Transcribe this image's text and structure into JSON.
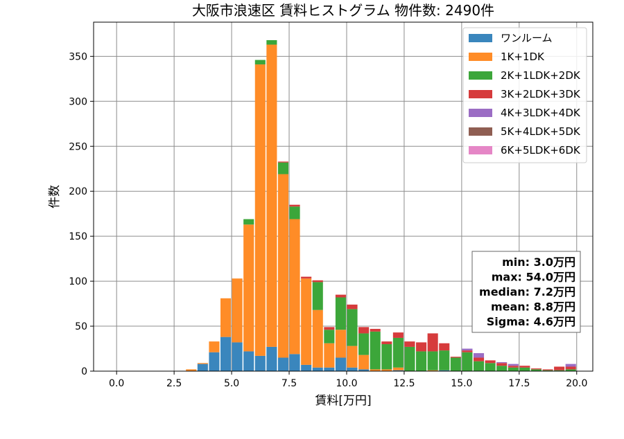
{
  "chart_data": {
    "type": "bar",
    "stacked": true,
    "title": "大阪市浪速区 賃料ヒストグラム  物件数: 2490件",
    "xlabel": "賃料[万円]",
    "ylabel": "件数",
    "xlim": [
      -1.0,
      20.7
    ],
    "ylim": [
      0,
      388
    ],
    "xticks": [
      0.0,
      2.5,
      5.0,
      7.5,
      10.0,
      12.5,
      15.0,
      17.5,
      20.0
    ],
    "xtick_labels": [
      "0.0",
      "2.5",
      "5.0",
      "7.5",
      "10.0",
      "12.5",
      "15.0",
      "17.5",
      "20.0"
    ],
    "yticks": [
      0,
      50,
      100,
      150,
      200,
      250,
      300,
      350
    ],
    "ytick_labels": [
      "0",
      "50",
      "100",
      "150",
      "200",
      "250",
      "300",
      "350"
    ],
    "grid": true,
    "legend_position": "top-right",
    "bin_width": 0.5,
    "bin_starts": [
      2.5,
      3.0,
      3.5,
      4.0,
      4.5,
      5.0,
      5.5,
      6.0,
      6.5,
      7.0,
      7.5,
      8.0,
      8.5,
      9.0,
      9.5,
      10.0,
      10.5,
      11.0,
      11.5,
      12.0,
      12.5,
      13.0,
      13.5,
      14.0,
      14.5,
      15.0,
      15.5,
      16.0,
      16.5,
      17.0,
      17.5,
      18.0,
      18.5,
      19.0,
      19.5
    ],
    "series": [
      {
        "name": "ワンルーム",
        "color": "#3a86bd",
        "values": [
          0,
          0,
          8,
          21,
          38,
          32,
          22,
          17,
          27,
          15,
          19,
          7,
          4,
          4,
          15,
          4,
          2,
          0,
          0,
          1,
          0,
          0,
          0,
          1,
          0,
          0,
          0,
          0,
          0,
          0,
          0,
          0,
          0,
          0,
          0
        ]
      },
      {
        "name": "1K+1DK",
        "color": "#ff8c27",
        "values": [
          0,
          2,
          1,
          12,
          43,
          71,
          141,
          324,
          336,
          204,
          150,
          96,
          64,
          27,
          31,
          24,
          16,
          2,
          2,
          3,
          0,
          0,
          1,
          0,
          0,
          0,
          0,
          0,
          0,
          0,
          0,
          0,
          0,
          0,
          0
        ]
      },
      {
        "name": "2K+1LDK+2DK",
        "color": "#3ca63a",
        "values": [
          0,
          0,
          0,
          0,
          0,
          0,
          6,
          5,
          5,
          13,
          14,
          0,
          31,
          15,
          36,
          41,
          24,
          42,
          28,
          33,
          27,
          22,
          21,
          22,
          15,
          21,
          11,
          9,
          6,
          4,
          4,
          2,
          1,
          1,
          2
        ]
      },
      {
        "name": "3K+2LDK+3DK",
        "color": "#d63b3c",
        "values": [
          0,
          0,
          0,
          0,
          0,
          0,
          0,
          0,
          0,
          1,
          2,
          2,
          2,
          3,
          3,
          5,
          7,
          3,
          3,
          6,
          6,
          10,
          20,
          8,
          1,
          2,
          4,
          3,
          3,
          2,
          2,
          1,
          1,
          4,
          3
        ]
      },
      {
        "name": "4K+3LDK+4DK",
        "color": "#9b6dc4",
        "values": [
          0,
          0,
          0,
          0,
          0,
          0,
          0,
          0,
          0,
          0,
          0,
          0,
          0,
          0,
          0,
          0,
          0,
          0,
          0,
          0,
          0,
          0,
          0,
          0,
          0,
          2,
          5,
          0,
          1,
          2,
          0,
          0,
          0,
          0,
          3
        ]
      },
      {
        "name": "5K+4LDK+5DK",
        "color": "#8f5e52",
        "values": [
          0,
          0,
          0,
          0,
          0,
          0,
          0,
          0,
          0,
          0,
          0,
          0,
          0,
          0,
          0,
          0,
          0,
          0,
          0,
          0,
          0,
          0,
          0,
          0,
          0,
          0,
          0,
          0,
          0,
          0,
          0,
          0,
          0,
          0,
          0
        ]
      },
      {
        "name": "6K+5LDK+6DK",
        "color": "#e586c6",
        "values": [
          0,
          0,
          0,
          0,
          0,
          0,
          0,
          0,
          0,
          0,
          0,
          0,
          0,
          0,
          0,
          0,
          0,
          0,
          0,
          0,
          0,
          0,
          0,
          0,
          0,
          0,
          0,
          0,
          0,
          0,
          0,
          0,
          0,
          0,
          0
        ]
      }
    ],
    "stats": [
      "min: 3.0万円",
      "max: 54.0万円",
      "median: 7.2万円",
      "mean: 8.8万円",
      "Sigma: 4.6万円"
    ]
  }
}
